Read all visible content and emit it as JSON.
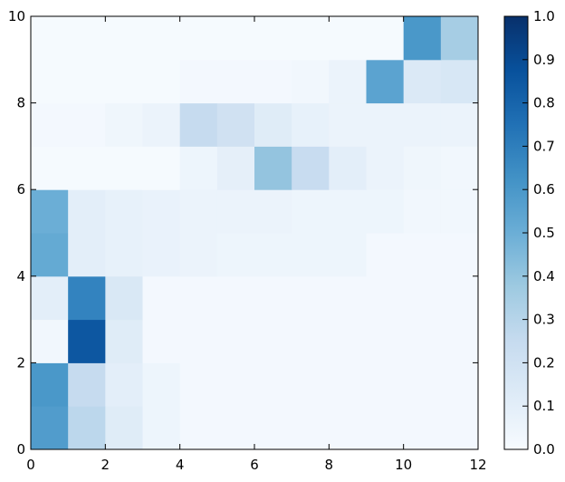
{
  "chart_data": {
    "type": "heatmap",
    "title": "",
    "xlabel": "",
    "ylabel": "",
    "xlim": [
      0,
      12
    ],
    "ylim": [
      0,
      10
    ],
    "x_ticks": [
      "0",
      "2",
      "4",
      "6",
      "8",
      "10",
      "12"
    ],
    "y_ticks": [
      "0",
      "2",
      "4",
      "6",
      "8",
      "10"
    ],
    "colorbar": {
      "range": [
        0.0,
        1.0
      ],
      "ticks": [
        "0.0",
        "0.1",
        "0.2",
        "0.3",
        "0.4",
        "0.5",
        "0.6",
        "0.7",
        "0.8",
        "0.9",
        "1.0"
      ],
      "colormap": "Blues",
      "low_color": "#f7fbff",
      "high_color": "#08306b"
    },
    "grid": false,
    "rows_from_bottom": [
      [
        0.58,
        0.28,
        0.12,
        0.05,
        0.02,
        0.02,
        0.02,
        0.02,
        0.02,
        0.02,
        0.02,
        0.02
      ],
      [
        0.6,
        0.25,
        0.1,
        0.05,
        0.02,
        0.02,
        0.02,
        0.02,
        0.02,
        0.02,
        0.02,
        0.02
      ],
      [
        0.03,
        0.85,
        0.12,
        0.02,
        0.02,
        0.02,
        0.02,
        0.02,
        0.02,
        0.02,
        0.02,
        0.02
      ],
      [
        0.1,
        0.68,
        0.15,
        0.02,
        0.02,
        0.02,
        0.02,
        0.02,
        0.02,
        0.02,
        0.02,
        0.02
      ],
      [
        0.52,
        0.1,
        0.08,
        0.07,
        0.06,
        0.05,
        0.05,
        0.05,
        0.05,
        0.02,
        0.02,
        0.02
      ],
      [
        0.5,
        0.1,
        0.08,
        0.07,
        0.06,
        0.06,
        0.06,
        0.05,
        0.05,
        0.05,
        0.03,
        0.03
      ],
      [
        0.01,
        0.01,
        0.01,
        0.01,
        0.05,
        0.09,
        0.4,
        0.24,
        0.1,
        0.06,
        0.04,
        0.03
      ],
      [
        0.02,
        0.02,
        0.04,
        0.06,
        0.25,
        0.2,
        0.12,
        0.08,
        0.06,
        0.06,
        0.06,
        0.06
      ],
      [
        0.01,
        0.01,
        0.01,
        0.01,
        0.02,
        0.02,
        0.02,
        0.03,
        0.06,
        0.55,
        0.14,
        0.16
      ],
      [
        0.01,
        0.01,
        0.01,
        0.01,
        0.01,
        0.01,
        0.01,
        0.01,
        0.01,
        0.01,
        0.6,
        0.35
      ]
    ]
  }
}
